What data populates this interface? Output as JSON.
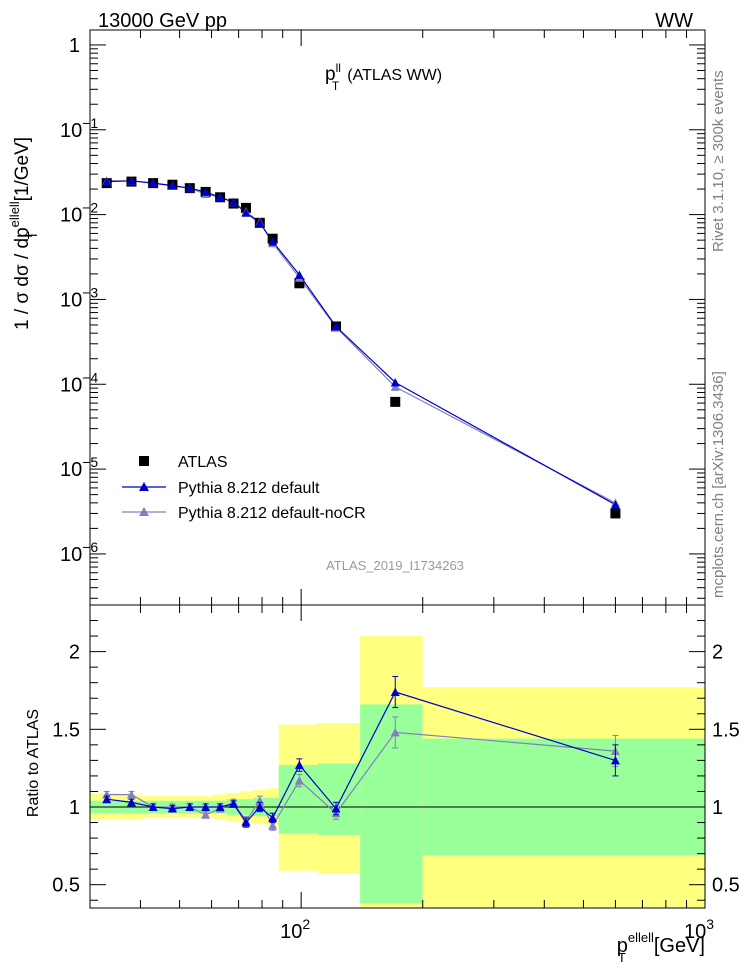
{
  "header": {
    "left": "13000 GeV pp",
    "right": "WW"
  },
  "side_labels": {
    "rivet": "Rivet 3.1.10, ≥ 300k events",
    "mcplots": "mcplots.cern.ch [arXiv:1306.3436]"
  },
  "analysis_id": "ATLAS_2019_I1734263",
  "colors": {
    "data": "#000000",
    "default": "#0000cc",
    "noCR": "#8080c0",
    "band_syst": "#ffff80",
    "band_stat": "#99ff99"
  },
  "chart_data": [
    {
      "type": "scatter",
      "panel": "main",
      "title": "p_T^ll (ATLAS WW)",
      "title_main": "p",
      "title_sup": "ll",
      "title_sub": "T",
      "title_rest": "(ATLAS WW)",
      "ylabel": "1 / σ dσ / dp_T^ellell [1/GeV]",
      "ylabel_parts": {
        "pre": "1 / σ dσ / dp",
        "sup": "ellell",
        "sub": "T",
        "post": "[1/GeV]"
      },
      "xscale": "log",
      "yscale": "log",
      "xlim": [
        30,
        1000
      ],
      "ylim": [
        2.5e-07,
        1.5
      ],
      "xticks": [
        {
          "value": 100,
          "label": "10",
          "exp": "2"
        },
        {
          "value": 1000,
          "label": "10",
          "exp": "3"
        }
      ],
      "yticks": [
        {
          "value": 1,
          "label": "1",
          "exp": ""
        },
        {
          "value": 0.1,
          "label": "10",
          "exp": "−1"
        },
        {
          "value": 0.01,
          "label": "10",
          "exp": "−2"
        },
        {
          "value": 0.001,
          "label": "10",
          "exp": "−3"
        },
        {
          "value": 0.0001,
          "label": "10",
          "exp": "−4"
        },
        {
          "value": 1e-05,
          "label": "10",
          "exp": "−5"
        },
        {
          "value": 1e-06,
          "label": "10",
          "exp": "−6"
        }
      ],
      "legend_position": "bottom-left",
      "series": [
        {
          "name": "ATLAS",
          "marker": "square",
          "x": [
            33,
            38,
            43,
            48,
            53,
            58,
            63,
            68,
            73,
            79,
            85,
            99,
            122,
            171,
            600
          ],
          "y": [
            0.0235,
            0.0245,
            0.0235,
            0.0225,
            0.0205,
            0.0185,
            0.016,
            0.0135,
            0.012,
            0.008,
            0.0052,
            0.00155,
            0.00048,
            6.2e-05,
            3e-06
          ]
        },
        {
          "name": "Pythia 8.212 default",
          "marker": "triangle",
          "x": [
            33,
            38,
            43,
            48,
            53,
            58,
            63,
            68,
            73,
            79,
            85,
            99,
            122,
            171,
            600
          ],
          "y": [
            0.0245,
            0.025,
            0.0235,
            0.022,
            0.0205,
            0.0185,
            0.016,
            0.014,
            0.0105,
            0.008,
            0.0048,
            0.00195,
            0.00048,
            0.000105,
            3.8e-06
          ]
        },
        {
          "name": "Pythia 8.212 default-noCR",
          "marker": "triangle",
          "x": [
            33,
            38,
            43,
            48,
            53,
            58,
            63,
            68,
            73,
            79,
            85,
            99,
            122,
            171,
            600
          ],
          "y": [
            0.025,
            0.025,
            0.0235,
            0.022,
            0.0205,
            0.0175,
            0.016,
            0.014,
            0.0108,
            0.0082,
            0.0046,
            0.0018,
            0.00047,
            9.3e-05,
            4e-06
          ]
        }
      ]
    },
    {
      "type": "scatter",
      "panel": "ratio",
      "ylabel": "Ratio to ATLAS",
      "xlabel": "p_T^ellell [GeV]",
      "xlabel_parts": {
        "pre": "p",
        "sup": "ellell",
        "sub": "T",
        "post": "[GeV]"
      },
      "xscale": "log",
      "yscale": "linear",
      "xlim": [
        30,
        1000
      ],
      "ylim": [
        0.35,
        2.3
      ],
      "yticks": [
        {
          "value": 0.5,
          "label": "0.5"
        },
        {
          "value": 1,
          "label": "1"
        },
        {
          "value": 1.5,
          "label": "1.5"
        },
        {
          "value": 2,
          "label": "2"
        }
      ],
      "bands": [
        {
          "x0": 30,
          "x1": 35.5,
          "syst": [
            0.92,
            1.09
          ],
          "stat": [
            0.96,
            1.04
          ]
        },
        {
          "x0": 35.5,
          "x1": 40.5,
          "syst": [
            0.92,
            1.08
          ],
          "stat": [
            0.96,
            1.04
          ]
        },
        {
          "x0": 40.5,
          "x1": 45.5,
          "syst": [
            0.93,
            1.07
          ],
          "stat": [
            0.96,
            1.04
          ]
        },
        {
          "x0": 45.5,
          "x1": 50.5,
          "syst": [
            0.93,
            1.07
          ],
          "stat": [
            0.96,
            1.04
          ]
        },
        {
          "x0": 50.5,
          "x1": 55.5,
          "syst": [
            0.93,
            1.07
          ],
          "stat": [
            0.96,
            1.04
          ]
        },
        {
          "x0": 55.5,
          "x1": 60.5,
          "syst": [
            0.93,
            1.07
          ],
          "stat": [
            0.96,
            1.04
          ]
        },
        {
          "x0": 60.5,
          "x1": 65.5,
          "syst": [
            0.92,
            1.08
          ],
          "stat": [
            0.96,
            1.04
          ]
        },
        {
          "x0": 65.5,
          "x1": 70.5,
          "syst": [
            0.91,
            1.09
          ],
          "stat": [
            0.95,
            1.05
          ]
        },
        {
          "x0": 70.5,
          "x1": 76,
          "syst": [
            0.9,
            1.1
          ],
          "stat": [
            0.95,
            1.05
          ]
        },
        {
          "x0": 76,
          "x1": 82,
          "syst": [
            0.89,
            1.11
          ],
          "stat": [
            0.94,
            1.06
          ]
        },
        {
          "x0": 82,
          "x1": 88,
          "syst": [
            0.88,
            1.12
          ],
          "stat": [
            0.94,
            1.06
          ]
        },
        {
          "x0": 88,
          "x1": 110,
          "syst": [
            0.59,
            1.53
          ],
          "stat": [
            0.83,
            1.27
          ]
        },
        {
          "x0": 110,
          "x1": 140,
          "syst": [
            0.57,
            1.54
          ],
          "stat": [
            0.82,
            1.28
          ]
        },
        {
          "x0": 140,
          "x1": 200,
          "syst": [
            0.35,
            2.1
          ],
          "stat": [
            0.38,
            1.66
          ]
        },
        {
          "x0": 200,
          "x1": 1000,
          "syst": [
            0.35,
            1.77
          ],
          "stat": [
            0.69,
            1.44
          ]
        }
      ],
      "series": [
        {
          "name": "Pythia 8.212 default",
          "x": [
            33,
            38,
            43,
            48,
            53,
            58,
            63,
            68,
            73,
            79,
            85,
            99,
            122,
            171,
            600
          ],
          "y": [
            1.05,
            1.03,
            1.0,
            0.99,
            1.0,
            1.0,
            1.0,
            1.02,
            0.9,
            1.0,
            0.93,
            1.27,
            0.99,
            1.74,
            1.3
          ],
          "err": [
            0.02,
            0.02,
            0.02,
            0.02,
            0.02,
            0.02,
            0.02,
            0.02,
            0.03,
            0.03,
            0.03,
            0.04,
            0.04,
            0.1,
            0.1
          ]
        },
        {
          "name": "Pythia 8.212 default-noCR",
          "x": [
            33,
            38,
            43,
            48,
            53,
            58,
            63,
            68,
            73,
            79,
            85,
            99,
            122,
            171,
            600
          ],
          "y": [
            1.08,
            1.08,
            1.0,
            1.0,
            1.0,
            0.95,
            0.99,
            1.03,
            0.91,
            1.04,
            0.88,
            1.17,
            0.96,
            1.48,
            1.36
          ],
          "err": [
            0.02,
            0.02,
            0.02,
            0.02,
            0.02,
            0.02,
            0.02,
            0.02,
            0.03,
            0.03,
            0.03,
            0.04,
            0.04,
            0.1,
            0.1
          ]
        }
      ]
    }
  ]
}
